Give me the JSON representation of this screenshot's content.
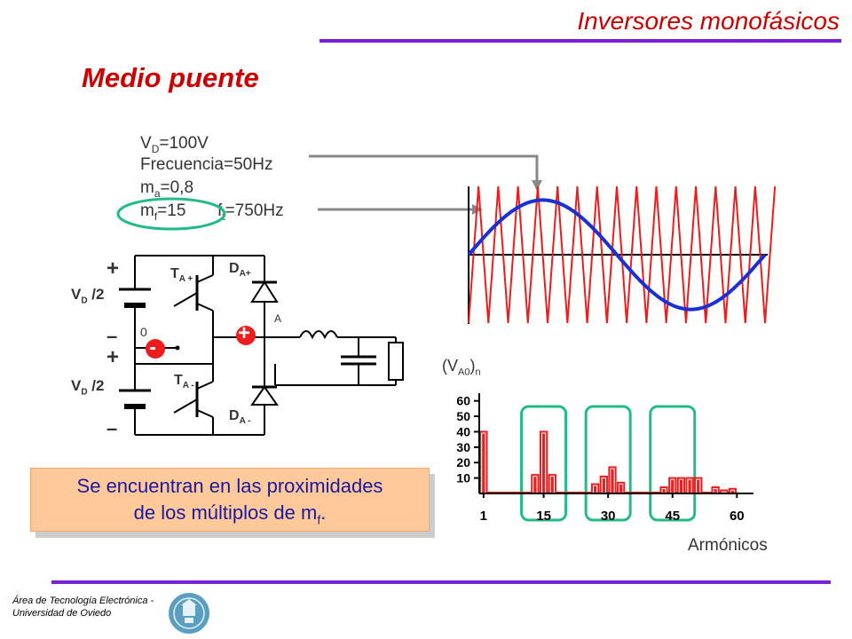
{
  "header": {
    "title": "Inversores monofásicos"
  },
  "slide": {
    "subtitle": "Medio puente"
  },
  "params": {
    "vd_label": "V",
    "vd_sub": "D",
    "vd_value": "=100V",
    "freq": "Frecuencia=50Hz",
    "ma_label": "m",
    "ma_sub": "a",
    "ma_value": "=0,8",
    "mf_label": "m",
    "mf_sub": "f",
    "mf_value": "=15",
    "ft_label": "f",
    "ft_sub": "t",
    "ft_value": "=750Hz"
  },
  "circuit": {
    "vd_half_1": "V",
    "vd_half_1_sub": "D",
    "vd_half_1_tail": " /2",
    "vd_half_2": "V",
    "vd_half_2_sub": "D",
    "vd_half_2_tail": " /2",
    "ta_plus": "T",
    "ta_plus_sub": "A +",
    "ta_minus": "T",
    "ta_minus_sub": "A -",
    "da_plus": "D",
    "da_plus_sub": "A+",
    "da_minus": "D",
    "da_minus_sub": "A -",
    "node_a": "A",
    "node_0": "0",
    "plus_sign": "+",
    "minus_sign": "–",
    "badge_plus": "+",
    "badge_minus": "-"
  },
  "callout": {
    "line1": "Se encuentran en las proximidades",
    "line2": "de los múltiplos de m",
    "line2_sub": "f",
    "line2_end": "."
  },
  "spectrum": {
    "ylabel": "(V",
    "ylabel_sub": "A0",
    "ylabel_end": ")",
    "ylabel_sub2": "n",
    "xlabel": "Armónicos",
    "colors": {
      "bar": "#ee1c1c",
      "highlight": "#22bb88"
    }
  },
  "chart_data": {
    "type": "bar",
    "xlabel": "Armónicos",
    "ylabel": "(VA0)n",
    "x_ticks": [
      1,
      15,
      30,
      45,
      60
    ],
    "y_ticks": [
      10,
      20,
      30,
      40,
      50,
      60
    ],
    "ylim": [
      0,
      65
    ],
    "xlim": [
      0,
      62
    ],
    "series": [
      {
        "harmonics": [
          1,
          13,
          15,
          17,
          27,
          29,
          31,
          33,
          43,
          45,
          47,
          49,
          51,
          55,
          57,
          59
        ],
        "values": [
          40,
          12,
          40,
          12,
          6,
          11,
          17,
          7,
          4,
          10,
          10,
          10,
          10,
          4,
          2,
          3
        ]
      }
    ]
  },
  "footer": {
    "line1": "Área de Tecnología Electrónica -",
    "line2": "Universidad de Oviedo"
  }
}
